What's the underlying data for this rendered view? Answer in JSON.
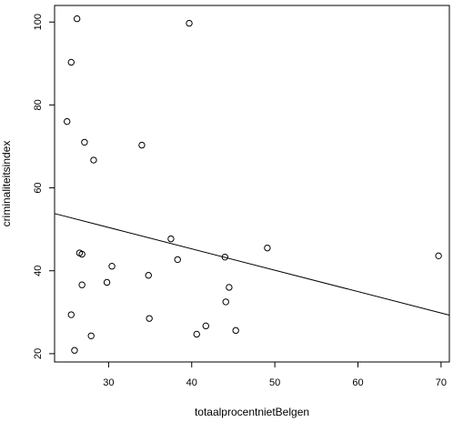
{
  "chart_data": {
    "type": "scatter",
    "xlabel": "totaalprocentnietBelgen",
    "ylabel": "criminaliteitsindex",
    "xlim": [
      23.5,
      71
    ],
    "ylim": [
      18,
      104
    ],
    "xticks": [
      30,
      40,
      50,
      60,
      70
    ],
    "yticks": [
      20,
      40,
      60,
      80,
      100
    ],
    "grid": false,
    "series": [
      {
        "points": [
          [
            26.2,
            100.8
          ],
          [
            39.7,
            99.7
          ],
          [
            25.5,
            90.3
          ],
          [
            25.0,
            76.0
          ],
          [
            27.1,
            71.0
          ],
          [
            34.0,
            70.3
          ],
          [
            28.2,
            66.7
          ],
          [
            37.5,
            47.7
          ],
          [
            49.1,
            45.5
          ],
          [
            26.5,
            44.3
          ],
          [
            26.8,
            44.0
          ],
          [
            44.0,
            43.3
          ],
          [
            69.7,
            43.6
          ],
          [
            38.3,
            42.7
          ],
          [
            30.4,
            41.1
          ],
          [
            34.8,
            38.9
          ],
          [
            26.8,
            36.6
          ],
          [
            29.8,
            37.2
          ],
          [
            44.5,
            36.0
          ],
          [
            44.1,
            32.5
          ],
          [
            25.5,
            29.4
          ],
          [
            34.9,
            28.5
          ],
          [
            41.7,
            26.7
          ],
          [
            45.3,
            25.6
          ],
          [
            40.6,
            24.7
          ],
          [
            27.9,
            24.3
          ],
          [
            25.9,
            20.8
          ]
        ]
      }
    ],
    "regression_line": {
      "x": [
        23.5,
        71
      ],
      "y": [
        53.8,
        29.3
      ]
    }
  }
}
